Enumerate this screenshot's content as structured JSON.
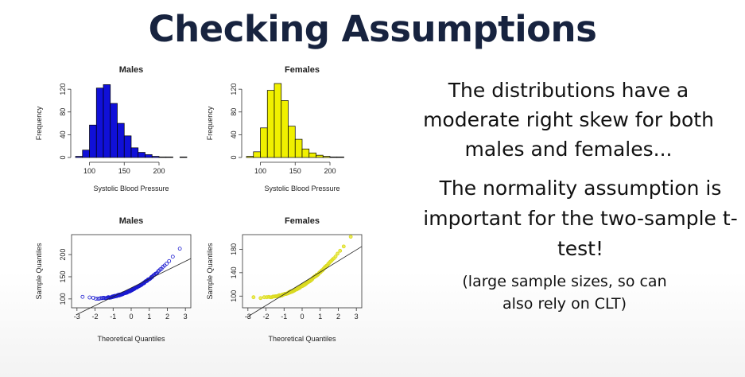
{
  "slide": {
    "title": "Checking Assumptions",
    "note_1": "The distributions have a moderate right skew for both males and females...",
    "note_2": "The normality assumption is important for the two-sample t-test!",
    "note_3": "(large sample sizes, so can also rely on CLT)"
  },
  "colors": {
    "male_fill": "#1010d8",
    "female_fill": "#f0f000",
    "male_points": "#1a1ad0",
    "female_points": "#e8e830"
  },
  "chart_data": [
    {
      "type": "bar",
      "title": "Males",
      "xlabel": "Systolic Blood Pressure",
      "ylabel": "Frequency",
      "bin_start": 80,
      "bin_width": 10,
      "values": [
        2,
        13,
        57,
        122,
        128,
        95,
        60,
        38,
        17,
        9,
        5,
        2,
        1,
        1,
        0,
        1
      ],
      "xlim": [
        80,
        240
      ],
      "ylim": [
        0,
        130
      ],
      "xticks": [
        100,
        150,
        200
      ],
      "yticks": [
        0,
        40,
        80,
        120
      ],
      "fill": "#1010d8"
    },
    {
      "type": "bar",
      "title": "Females",
      "xlabel": "Systolic Blood Pressure",
      "ylabel": "Frequency",
      "bin_start": 80,
      "bin_width": 10,
      "values": [
        2,
        10,
        52,
        118,
        130,
        100,
        55,
        32,
        15,
        8,
        4,
        2,
        1,
        1,
        0,
        0
      ],
      "xlim": [
        80,
        240
      ],
      "ylim": [
        0,
        130
      ],
      "xticks": [
        100,
        150,
        200
      ],
      "yticks": [
        0,
        40,
        80,
        120
      ],
      "fill": "#f0f000"
    },
    {
      "type": "scatter",
      "title": "Males",
      "xlabel": "Theoretical Quantiles",
      "ylabel": "Sample Quantiles",
      "xlim": [
        -3.3,
        3.3
      ],
      "ylim": [
        80,
        245
      ],
      "xticks": [
        -3,
        -2,
        -1,
        0,
        1,
        2,
        3
      ],
      "yticks": [
        100,
        150,
        200
      ],
      "reference_line": {
        "intercept": 125,
        "slope": 20
      },
      "fill": "#1a1ad0"
    },
    {
      "type": "scatter",
      "title": "Females",
      "xlabel": "Theoretical Quantiles",
      "ylabel": "Sample Quantiles",
      "xlim": [
        -3.3,
        3.3
      ],
      "ylim": [
        80,
        205
      ],
      "xticks": [
        -3,
        -2,
        -1,
        0,
        1,
        2,
        3
      ],
      "yticks": [
        100,
        140,
        180
      ],
      "reference_line": {
        "intercept": 122,
        "slope": 19
      },
      "fill": "#e8e830"
    }
  ]
}
